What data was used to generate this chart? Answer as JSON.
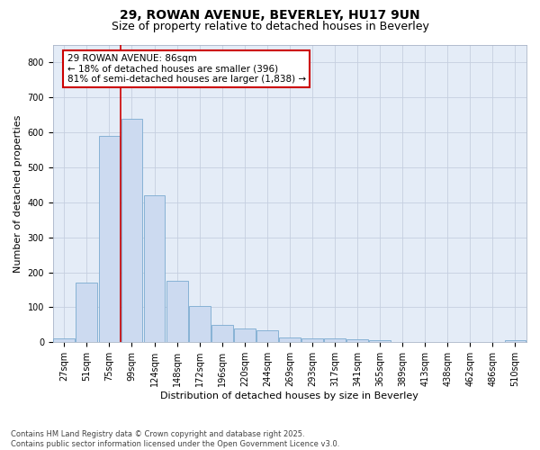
{
  "title_line1": "29, ROWAN AVENUE, BEVERLEY, HU17 9UN",
  "title_line2": "Size of property relative to detached houses in Beverley",
  "xlabel": "Distribution of detached houses by size in Beverley",
  "ylabel": "Number of detached properties",
  "bar_fill_color": "#ccdaf0",
  "bar_edge_color": "#7aaad0",
  "background_color": "#e4ecf7",
  "categories": [
    "27sqm",
    "51sqm",
    "75sqm",
    "99sqm",
    "124sqm",
    "148sqm",
    "172sqm",
    "196sqm",
    "220sqm",
    "244sqm",
    "269sqm",
    "293sqm",
    "317sqm",
    "341sqm",
    "365sqm",
    "389sqm",
    "413sqm",
    "438sqm",
    "462sqm",
    "486sqm",
    "510sqm"
  ],
  "values": [
    10,
    170,
    590,
    640,
    420,
    175,
    105,
    50,
    40,
    35,
    15,
    10,
    10,
    8,
    5,
    0,
    0,
    0,
    0,
    0,
    5
  ],
  "ylim": [
    0,
    850
  ],
  "yticks": [
    0,
    100,
    200,
    300,
    400,
    500,
    600,
    700,
    800
  ],
  "vline_x": 2.5,
  "vline_color": "#cc0000",
  "annotation_text": "29 ROWAN AVENUE: 86sqm\n← 18% of detached houses are smaller (396)\n81% of semi-detached houses are larger (1,838) →",
  "annotation_box_color": "white",
  "annotation_border_color": "#cc0000",
  "footer_line1": "Contains HM Land Registry data © Crown copyright and database right 2025.",
  "footer_line2": "Contains public sector information licensed under the Open Government Licence v3.0.",
  "grid_color": "#c5cfe0",
  "title_fontsize": 10,
  "subtitle_fontsize": 9,
  "tick_fontsize": 7,
  "label_fontsize": 8,
  "annotation_fontsize": 7.5,
  "footer_fontsize": 6
}
